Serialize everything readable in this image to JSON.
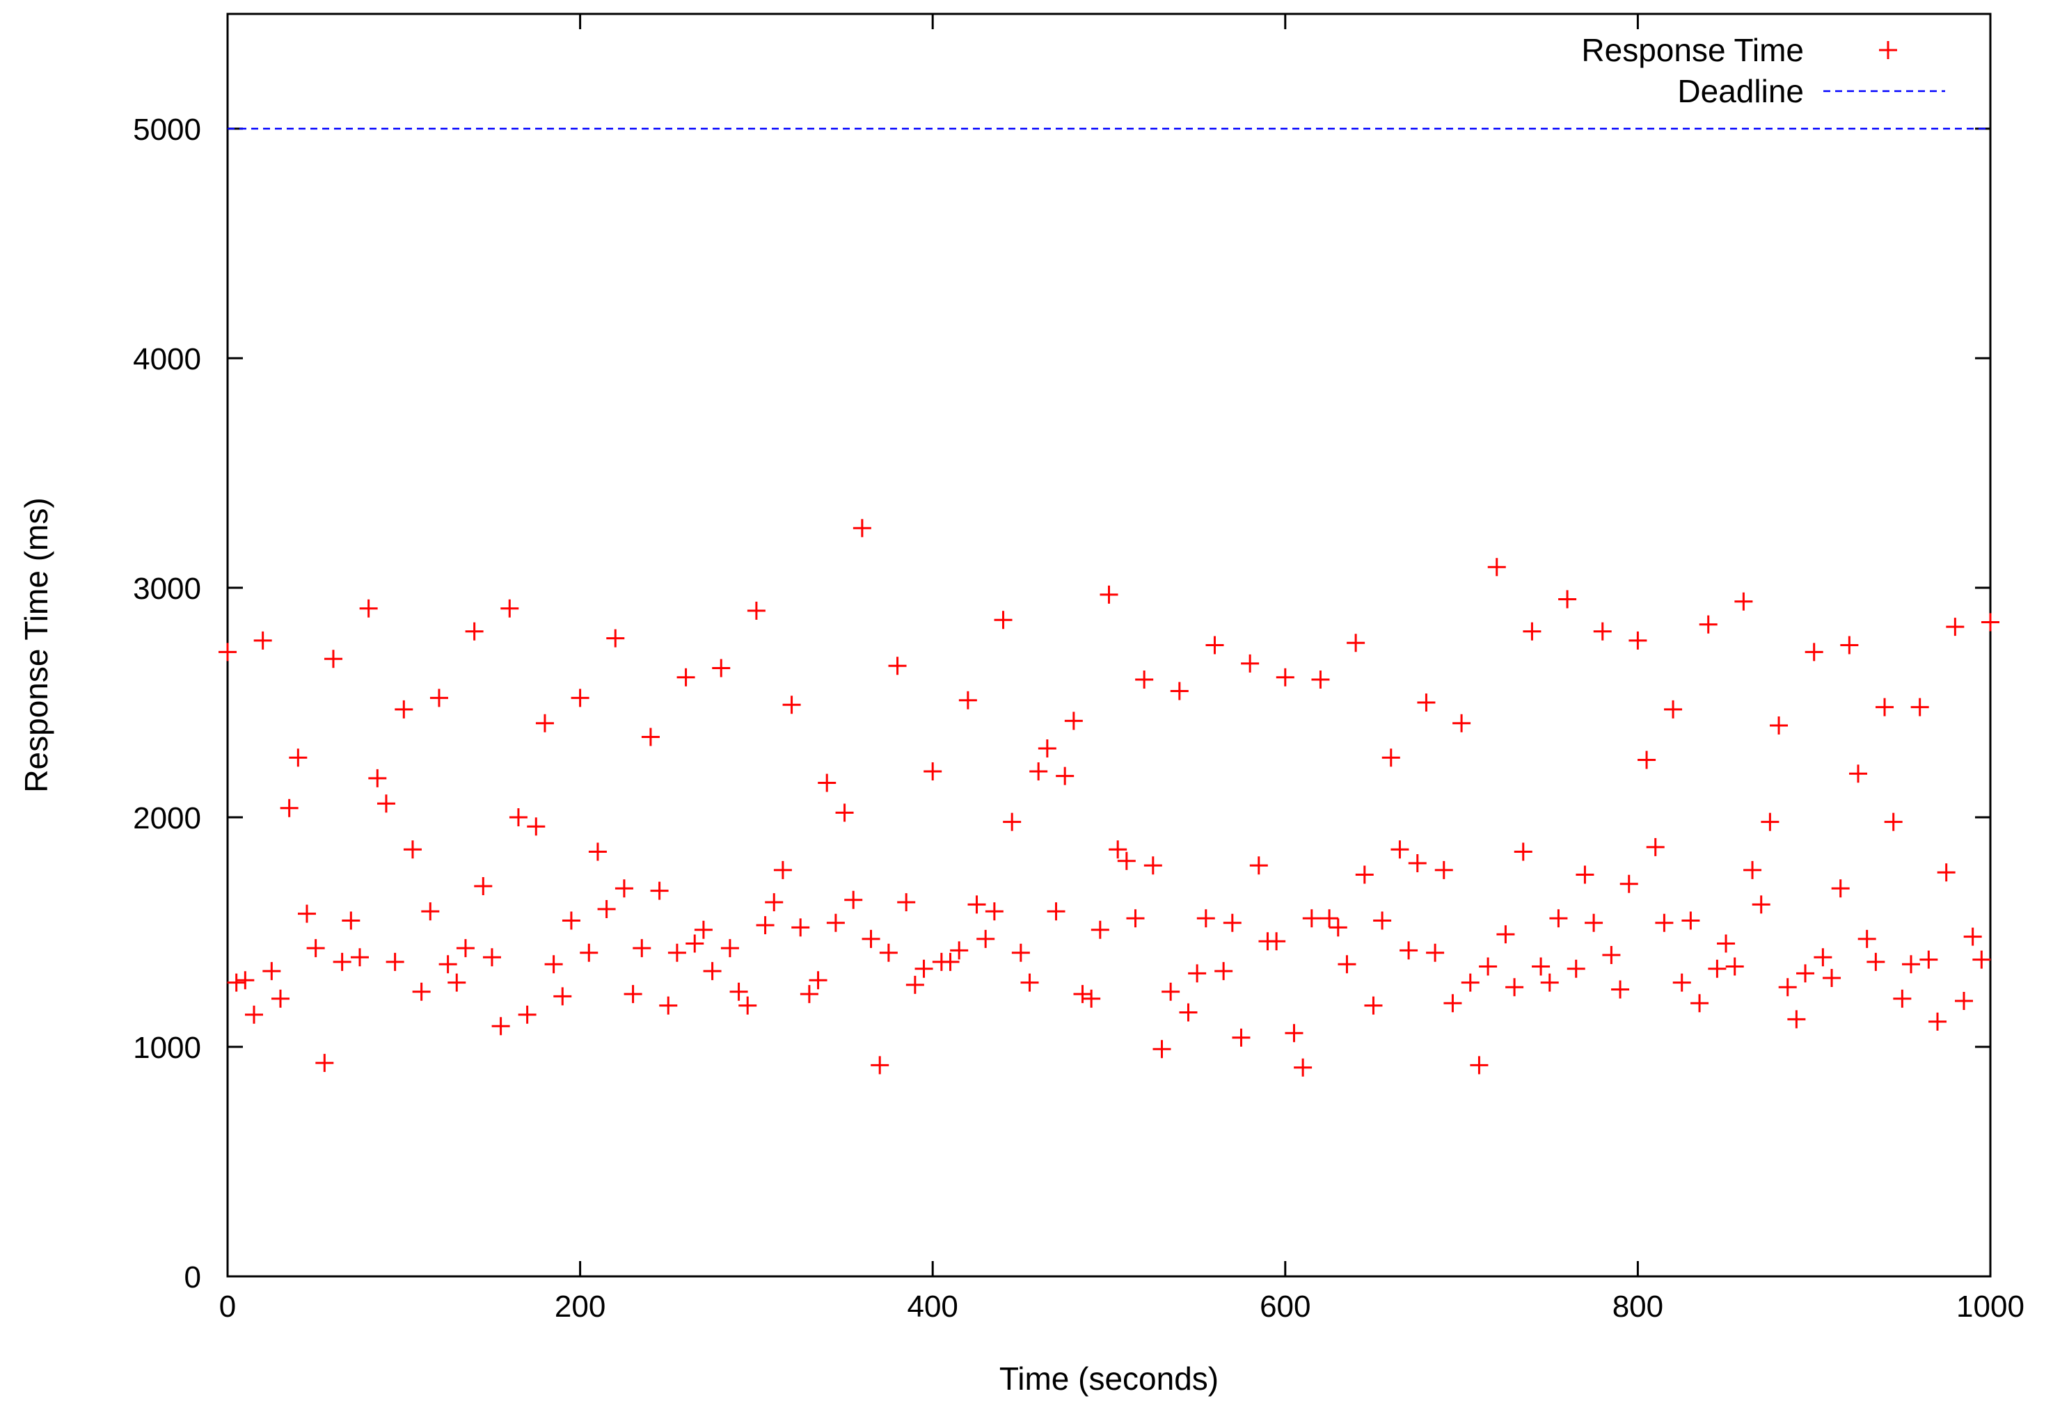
{
  "chart_data": {
    "type": "scatter",
    "title": "",
    "xlabel": "Time (seconds)",
    "ylabel": "Response Time (ms)",
    "xlim": [
      0,
      1000
    ],
    "ylim": [
      0,
      5500
    ],
    "x_ticks": [
      0,
      200,
      400,
      600,
      800,
      1000
    ],
    "y_ticks": [
      0,
      1000,
      2000,
      3000,
      4000,
      5000
    ],
    "x_tick_labels": [
      "0",
      "200",
      "400",
      "600",
      "800",
      "1000"
    ],
    "y_tick_labels": [
      "0",
      "1000",
      "2000",
      "3000",
      "4000",
      "5000"
    ],
    "grid": false,
    "legend_position": "top-right",
    "series": [
      {
        "name": "Response Time",
        "style": "points",
        "marker": "plus",
        "color": "#ff0000",
        "points": [
          [
            0,
            2720
          ],
          [
            5,
            1280
          ],
          [
            10,
            1290
          ],
          [
            15,
            1140
          ],
          [
            20,
            2770
          ],
          [
            25,
            1330
          ],
          [
            30,
            1210
          ],
          [
            35,
            2040
          ],
          [
            40,
            2260
          ],
          [
            45,
            1580
          ],
          [
            50,
            1430
          ],
          [
            55,
            930
          ],
          [
            60,
            2690
          ],
          [
            65,
            1370
          ],
          [
            70,
            1550
          ],
          [
            75,
            1390
          ],
          [
            80,
            2910
          ],
          [
            85,
            2170
          ],
          [
            90,
            2060
          ],
          [
            95,
            1370
          ],
          [
            100,
            2470
          ],
          [
            105,
            1860
          ],
          [
            110,
            1240
          ],
          [
            115,
            1590
          ],
          [
            120,
            2520
          ],
          [
            125,
            1360
          ],
          [
            130,
            1280
          ],
          [
            135,
            1430
          ],
          [
            140,
            2810
          ],
          [
            145,
            1700
          ],
          [
            150,
            1390
          ],
          [
            155,
            1090
          ],
          [
            160,
            2910
          ],
          [
            165,
            2000
          ],
          [
            170,
            1140
          ],
          [
            175,
            1960
          ],
          [
            180,
            2410
          ],
          [
            185,
            1360
          ],
          [
            190,
            1220
          ],
          [
            195,
            1550
          ],
          [
            200,
            2520
          ],
          [
            205,
            1410
          ],
          [
            210,
            1850
          ],
          [
            215,
            1600
          ],
          [
            220,
            2780
          ],
          [
            225,
            1690
          ],
          [
            230,
            1230
          ],
          [
            235,
            1430
          ],
          [
            240,
            2350
          ],
          [
            245,
            1680
          ],
          [
            250,
            1180
          ],
          [
            255,
            1410
          ],
          [
            260,
            2610
          ],
          [
            265,
            1450
          ],
          [
            270,
            1510
          ],
          [
            275,
            1330
          ],
          [
            280,
            2650
          ],
          [
            285,
            1430
          ],
          [
            290,
            1240
          ],
          [
            295,
            1180
          ],
          [
            300,
            2900
          ],
          [
            305,
            1530
          ],
          [
            310,
            1630
          ],
          [
            315,
            1770
          ],
          [
            320,
            2490
          ],
          [
            325,
            1520
          ],
          [
            330,
            1230
          ],
          [
            335,
            1290
          ],
          [
            340,
            2150
          ],
          [
            345,
            1540
          ],
          [
            350,
            2020
          ],
          [
            355,
            1640
          ],
          [
            360,
            3260
          ],
          [
            365,
            1470
          ],
          [
            370,
            920
          ],
          [
            375,
            1410
          ],
          [
            380,
            2660
          ],
          [
            385,
            1630
          ],
          [
            390,
            1270
          ],
          [
            395,
            1340
          ],
          [
            400,
            2200
          ],
          [
            405,
            1370
          ],
          [
            410,
            1370
          ],
          [
            415,
            1420
          ],
          [
            420,
            2510
          ],
          [
            425,
            1620
          ],
          [
            430,
            1470
          ],
          [
            435,
            1590
          ],
          [
            440,
            2860
          ],
          [
            445,
            1980
          ],
          [
            450,
            1410
          ],
          [
            455,
            1280
          ],
          [
            460,
            2200
          ],
          [
            465,
            2300
          ],
          [
            470,
            1590
          ],
          [
            475,
            2180
          ],
          [
            480,
            2420
          ],
          [
            485,
            1230
          ],
          [
            490,
            1210
          ],
          [
            495,
            1510
          ],
          [
            500,
            2970
          ],
          [
            505,
            1860
          ],
          [
            510,
            1810
          ],
          [
            515,
            1560
          ],
          [
            520,
            2600
          ],
          [
            525,
            1790
          ],
          [
            530,
            990
          ],
          [
            535,
            1240
          ],
          [
            540,
            2550
          ],
          [
            545,
            1150
          ],
          [
            550,
            1320
          ],
          [
            555,
            1560
          ],
          [
            560,
            2750
          ],
          [
            565,
            1330
          ],
          [
            570,
            1540
          ],
          [
            575,
            1040
          ],
          [
            580,
            2670
          ],
          [
            585,
            1790
          ],
          [
            590,
            1460
          ],
          [
            595,
            1460
          ],
          [
            600,
            2610
          ],
          [
            605,
            1060
          ],
          [
            610,
            910
          ],
          [
            615,
            1560
          ],
          [
            620,
            2600
          ],
          [
            625,
            1560
          ],
          [
            630,
            1520
          ],
          [
            635,
            1360
          ],
          [
            640,
            2760
          ],
          [
            645,
            1750
          ],
          [
            650,
            1180
          ],
          [
            655,
            1550
          ],
          [
            660,
            2260
          ],
          [
            665,
            1860
          ],
          [
            670,
            1420
          ],
          [
            675,
            1800
          ],
          [
            680,
            2500
          ],
          [
            685,
            1410
          ],
          [
            690,
            1770
          ],
          [
            695,
            1190
          ],
          [
            700,
            2410
          ],
          [
            705,
            1280
          ],
          [
            710,
            920
          ],
          [
            715,
            1350
          ],
          [
            720,
            3090
          ],
          [
            725,
            1490
          ],
          [
            730,
            1260
          ],
          [
            735,
            1850
          ],
          [
            740,
            2810
          ],
          [
            745,
            1350
          ],
          [
            750,
            1280
          ],
          [
            755,
            1560
          ],
          [
            760,
            2950
          ],
          [
            765,
            1340
          ],
          [
            770,
            1750
          ],
          [
            775,
            1540
          ],
          [
            780,
            2810
          ],
          [
            785,
            1400
          ],
          [
            790,
            1250
          ],
          [
            795,
            1710
          ],
          [
            800,
            2770
          ],
          [
            805,
            2250
          ],
          [
            810,
            1870
          ],
          [
            815,
            1540
          ],
          [
            820,
            2470
          ],
          [
            825,
            1280
          ],
          [
            830,
            1550
          ],
          [
            835,
            1190
          ],
          [
            840,
            2840
          ],
          [
            845,
            1340
          ],
          [
            850,
            1450
          ],
          [
            855,
            1350
          ],
          [
            860,
            2940
          ],
          [
            865,
            1770
          ],
          [
            870,
            1620
          ],
          [
            875,
            1980
          ],
          [
            880,
            2400
          ],
          [
            885,
            1260
          ],
          [
            890,
            1120
          ],
          [
            895,
            1320
          ],
          [
            900,
            2720
          ],
          [
            905,
            1390
          ],
          [
            910,
            1300
          ],
          [
            915,
            1690
          ],
          [
            920,
            2750
          ],
          [
            925,
            2190
          ],
          [
            930,
            1470
          ],
          [
            935,
            1370
          ],
          [
            940,
            2480
          ],
          [
            945,
            1980
          ],
          [
            950,
            1210
          ],
          [
            955,
            1360
          ],
          [
            960,
            2480
          ],
          [
            965,
            1380
          ],
          [
            970,
            1110
          ],
          [
            975,
            1760
          ],
          [
            980,
            2830
          ],
          [
            985,
            1200
          ],
          [
            990,
            1480
          ],
          [
            995,
            1380
          ],
          [
            1000,
            2850
          ]
        ]
      },
      {
        "name": "Deadline",
        "style": "line",
        "dash": "dashed",
        "color": "#0000ff",
        "points": [
          [
            0,
            5000
          ],
          [
            1000,
            5000
          ]
        ]
      }
    ]
  }
}
